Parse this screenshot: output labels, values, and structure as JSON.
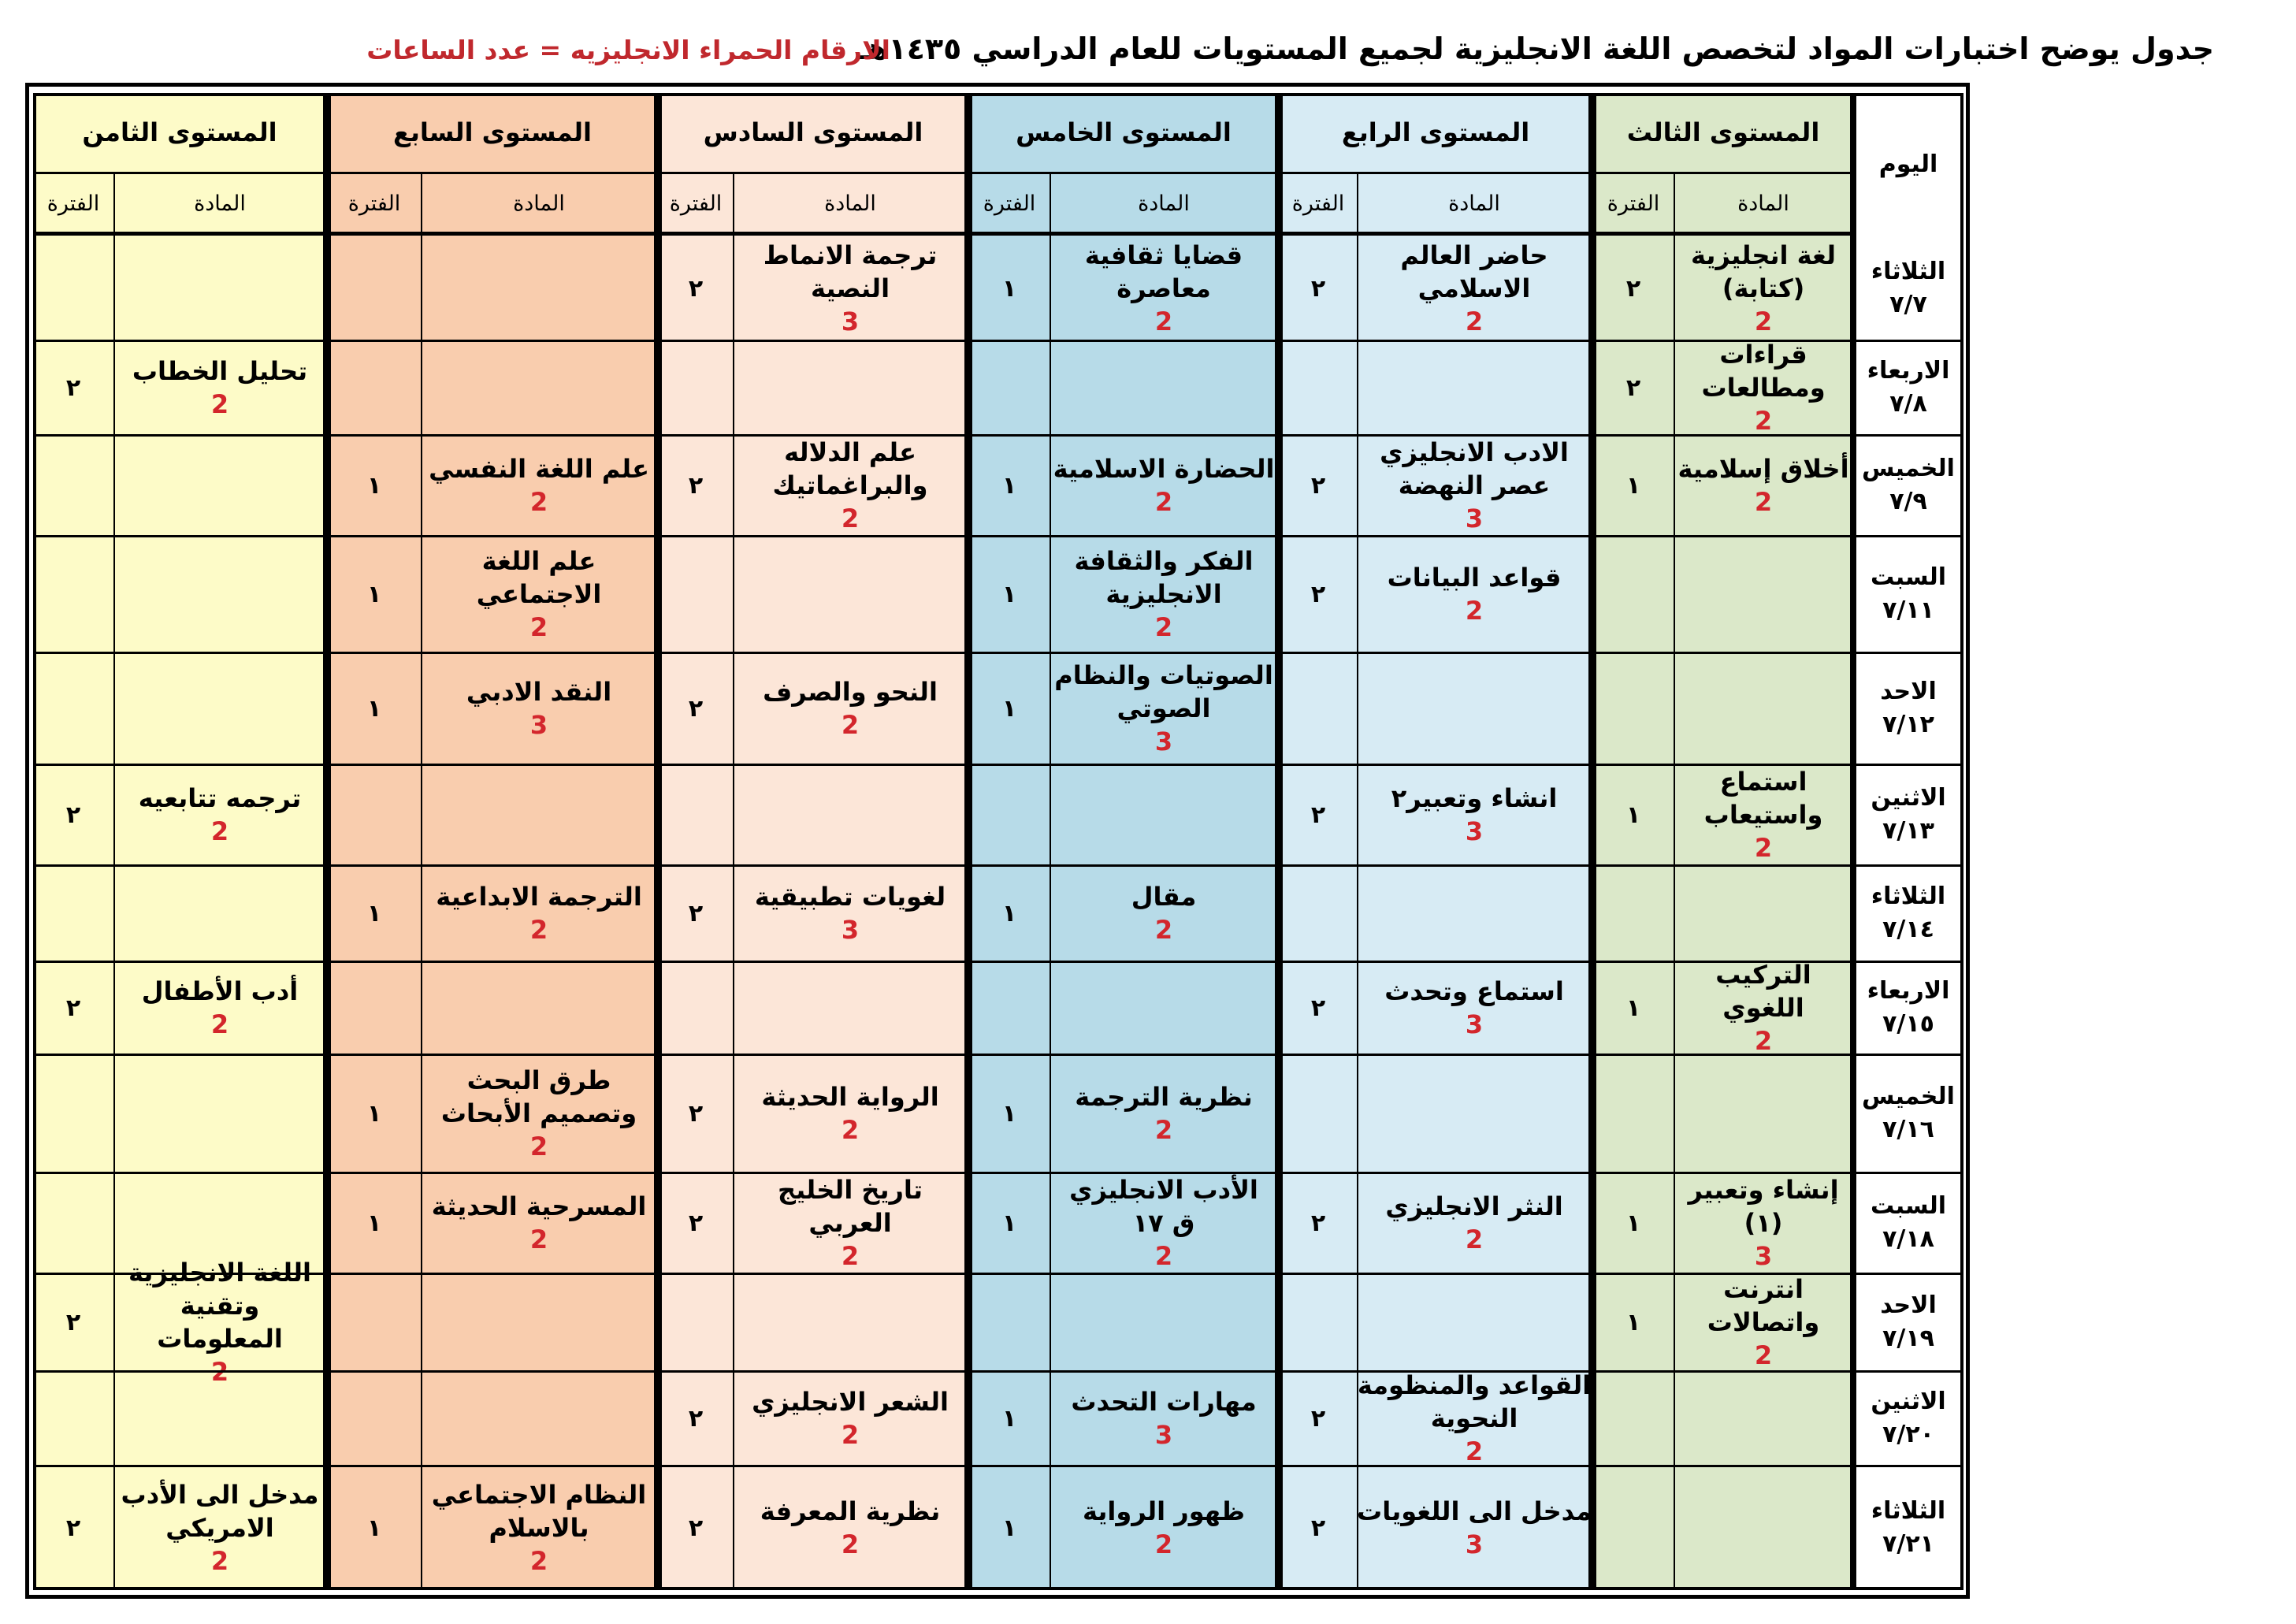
{
  "title": "جدول يوضح اختبارات المواد لتخصص اللغة الانجليزية لجميع المستويات للعام الدراسي ١٤٣٥هـ",
  "legend": "الارقام الحمراء الانجليزيه = عدد الساعات",
  "day_header": "اليوم",
  "subject_header": "المادة",
  "period_header": "الفترة",
  "colors": {
    "level3": "#dbe8c9",
    "level4": "#d7ebf4",
    "level5": "#b7dbe8",
    "level6": "#fce6d8",
    "level7": "#f9cdae",
    "level8": "#fdfbc8",
    "day": "#ffffff",
    "hours_red": "#d3262c"
  },
  "levels": [
    {
      "key": "level3",
      "name": "المستوى الثالث"
    },
    {
      "key": "level4",
      "name": "المستوى الرابع"
    },
    {
      "key": "level5",
      "name": "المستوى الخامس"
    },
    {
      "key": "level6",
      "name": "المستوى السادس"
    },
    {
      "key": "level7",
      "name": "المستوى السابع"
    },
    {
      "key": "level8",
      "name": "المستوى الثامن"
    }
  ],
  "rows": [
    {
      "day": "الثلاثاء",
      "date": "٧/٧",
      "cells": [
        {
          "s": [
            "لغة انجليزية",
            "(كتابة)"
          ],
          "h": "2",
          "p": "٢"
        },
        {
          "s": [
            "حاضر العالم",
            "الاسلامي"
          ],
          "h": "2",
          "p": "٢"
        },
        {
          "s": [
            "قضايا ثقافية",
            "معاصرة"
          ],
          "h": "2",
          "p": "١"
        },
        {
          "s": [
            "ترجمة الانماط",
            "النصية"
          ],
          "h": "3",
          "p": "٢"
        },
        {
          "s": [],
          "h": "",
          "p": ""
        },
        {
          "s": [],
          "h": "",
          "p": ""
        }
      ]
    },
    {
      "day": "الاربعاء",
      "date": "٧/٨",
      "cells": [
        {
          "s": [
            "قراءات",
            "ومطالعات"
          ],
          "h": "2",
          "p": "٢"
        },
        {
          "s": [],
          "h": "",
          "p": ""
        },
        {
          "s": [],
          "h": "",
          "p": ""
        },
        {
          "s": [],
          "h": "",
          "p": ""
        },
        {
          "s": [],
          "h": "",
          "p": ""
        },
        {
          "s": [
            "تحليل الخطاب"
          ],
          "h": "2",
          "p": "٢"
        }
      ]
    },
    {
      "day": "الخميس",
      "date": "٧/٩",
      "cells": [
        {
          "s": [
            "أخلاق إسلامية"
          ],
          "h": "2",
          "p": "١"
        },
        {
          "s": [
            "الادب الانجليزي",
            "عصر النهضة"
          ],
          "h": "3",
          "p": "٢"
        },
        {
          "s": [
            "الحضارة الاسلامية"
          ],
          "h": "2",
          "p": "١"
        },
        {
          "s": [
            "علم الدلاله",
            "والبراغماتيك"
          ],
          "h": "2",
          "p": "٢"
        },
        {
          "s": [
            "علم اللغة النفسي"
          ],
          "h": "2",
          "p": "١"
        },
        {
          "s": [],
          "h": "",
          "p": ""
        }
      ]
    },
    {
      "day": "السبت",
      "date": "٧/١١",
      "cells": [
        {
          "s": [],
          "h": "",
          "p": ""
        },
        {
          "s": [
            "قواعد البيانات"
          ],
          "h": "2",
          "p": "٢"
        },
        {
          "s": [
            "الفكر والثقافة",
            "الانجليزية"
          ],
          "h": "2",
          "p": "١"
        },
        {
          "s": [],
          "h": "",
          "p": ""
        },
        {
          "s": [
            "علم اللغة",
            "الاجتماعي"
          ],
          "h": "2",
          "p": "١"
        },
        {
          "s": [],
          "h": "",
          "p": ""
        }
      ]
    },
    {
      "day": "الاحد",
      "date": "٧/١٢",
      "cells": [
        {
          "s": [],
          "h": "",
          "p": ""
        },
        {
          "s": [],
          "h": "",
          "p": ""
        },
        {
          "s": [
            "الصوتيات والنظام",
            "الصوتي"
          ],
          "h": "3",
          "p": "١"
        },
        {
          "s": [
            "النحو والصرف"
          ],
          "h": "2",
          "p": "٢"
        },
        {
          "s": [
            "النقد الادبي"
          ],
          "h": "3",
          "p": "١"
        },
        {
          "s": [],
          "h": "",
          "p": ""
        }
      ]
    },
    {
      "day": "الاثنين",
      "date": "٧/١٣",
      "cells": [
        {
          "s": [
            "استماع",
            "واستيعاب"
          ],
          "h": "2",
          "p": "١"
        },
        {
          "s": [
            "انشاء وتعبير٢"
          ],
          "h": "3",
          "p": "٢"
        },
        {
          "s": [],
          "h": "",
          "p": ""
        },
        {
          "s": [],
          "h": "",
          "p": ""
        },
        {
          "s": [],
          "h": "",
          "p": ""
        },
        {
          "s": [
            "ترجمه تتابعيه"
          ],
          "h": "2",
          "p": "٢"
        }
      ]
    },
    {
      "day": "الثلاثاء",
      "date": "٧/١٤",
      "cells": [
        {
          "s": [],
          "h": "",
          "p": ""
        },
        {
          "s": [],
          "h": "",
          "p": ""
        },
        {
          "s": [
            "مقال"
          ],
          "h": "2",
          "p": "١"
        },
        {
          "s": [
            "لغويات تطبيقية"
          ],
          "h": "3",
          "p": "٢"
        },
        {
          "s": [
            "الترجمة الابداعية"
          ],
          "h": "2",
          "p": "١"
        },
        {
          "s": [],
          "h": "",
          "p": ""
        }
      ]
    },
    {
      "day": "الاربعاء",
      "date": "٧/١٥",
      "cells": [
        {
          "s": [
            "التركيب اللغوي"
          ],
          "h": "2",
          "p": "١"
        },
        {
          "s": [
            "استماع وتحدث"
          ],
          "h": "3",
          "p": "٢"
        },
        {
          "s": [],
          "h": "",
          "p": ""
        },
        {
          "s": [],
          "h": "",
          "p": ""
        },
        {
          "s": [],
          "h": "",
          "p": ""
        },
        {
          "s": [
            "أدب الأطفال"
          ],
          "h": "2",
          "p": "٢"
        }
      ]
    },
    {
      "day": "الخميس",
      "date": "٧/١٦",
      "cells": [
        {
          "s": [],
          "h": "",
          "p": ""
        },
        {
          "s": [],
          "h": "",
          "p": ""
        },
        {
          "s": [
            "نظرية الترجمة"
          ],
          "h": "2",
          "p": "١"
        },
        {
          "s": [
            "الرواية الحديثة"
          ],
          "h": "2",
          "p": "٢"
        },
        {
          "s": [
            "طرق البحث",
            "وتصميم الأبحاث"
          ],
          "h": "2",
          "p": "١"
        },
        {
          "s": [],
          "h": "",
          "p": ""
        }
      ]
    },
    {
      "day": "السبت",
      "date": "٧/١٨",
      "cells": [
        {
          "s": [
            "إنشاء وتعبير",
            "(١)"
          ],
          "h": "3",
          "p": "١"
        },
        {
          "s": [
            "النثر الانجليزي"
          ],
          "h": "2",
          "p": "٢"
        },
        {
          "s": [
            "الأدب الانجليزي",
            "ق ١٧"
          ],
          "h": "2",
          "p": "١"
        },
        {
          "s": [
            "تاريخ الخليج العربي"
          ],
          "h": "2",
          "p": "٢"
        },
        {
          "s": [
            "المسرحية الحديثة"
          ],
          "h": "2",
          "p": "١"
        },
        {
          "s": [],
          "h": "",
          "p": ""
        }
      ]
    },
    {
      "day": "الاحد",
      "date": "٧/١٩",
      "cells": [
        {
          "s": [
            "انترنت",
            "واتصالات"
          ],
          "h": "2",
          "p": "١"
        },
        {
          "s": [],
          "h": "",
          "p": ""
        },
        {
          "s": [],
          "h": "",
          "p": ""
        },
        {
          "s": [],
          "h": "",
          "p": ""
        },
        {
          "s": [],
          "h": "",
          "p": ""
        },
        {
          "s": [
            "اللغة الانجليزية",
            "وتقنية المعلومات"
          ],
          "h": "2",
          "p": "٢"
        }
      ]
    },
    {
      "day": "الاثنين",
      "date": "٧/٢٠",
      "cells": [
        {
          "s": [],
          "h": "",
          "p": ""
        },
        {
          "s": [
            "القواعد والمنظومة",
            "النحوية"
          ],
          "h": "2",
          "p": "٢"
        },
        {
          "s": [
            "مهارات التحدث"
          ],
          "h": "3",
          "p": "١"
        },
        {
          "s": [
            "الشعر الانجليزي"
          ],
          "h": "2",
          "p": "٢"
        },
        {
          "s": [],
          "h": "",
          "p": ""
        },
        {
          "s": [],
          "h": "",
          "p": ""
        }
      ]
    },
    {
      "day": "الثلاثاء",
      "date": "٧/٢١",
      "cells": [
        {
          "s": [],
          "h": "",
          "p": ""
        },
        {
          "s": [
            "مدخل الى اللغويات"
          ],
          "h": "3",
          "p": "٢"
        },
        {
          "s": [
            "ظهور الرواية"
          ],
          "h": "2",
          "p": "١"
        },
        {
          "s": [
            "نظرية المعرفة"
          ],
          "h": "2",
          "p": "٢"
        },
        {
          "s": [
            "النظام الاجتماعي",
            "بالاسلام"
          ],
          "h": "2",
          "p": "١"
        },
        {
          "s": [
            "مدخل الى الأدب",
            "الامريكي"
          ],
          "h": "2",
          "p": "٢"
        }
      ]
    }
  ]
}
